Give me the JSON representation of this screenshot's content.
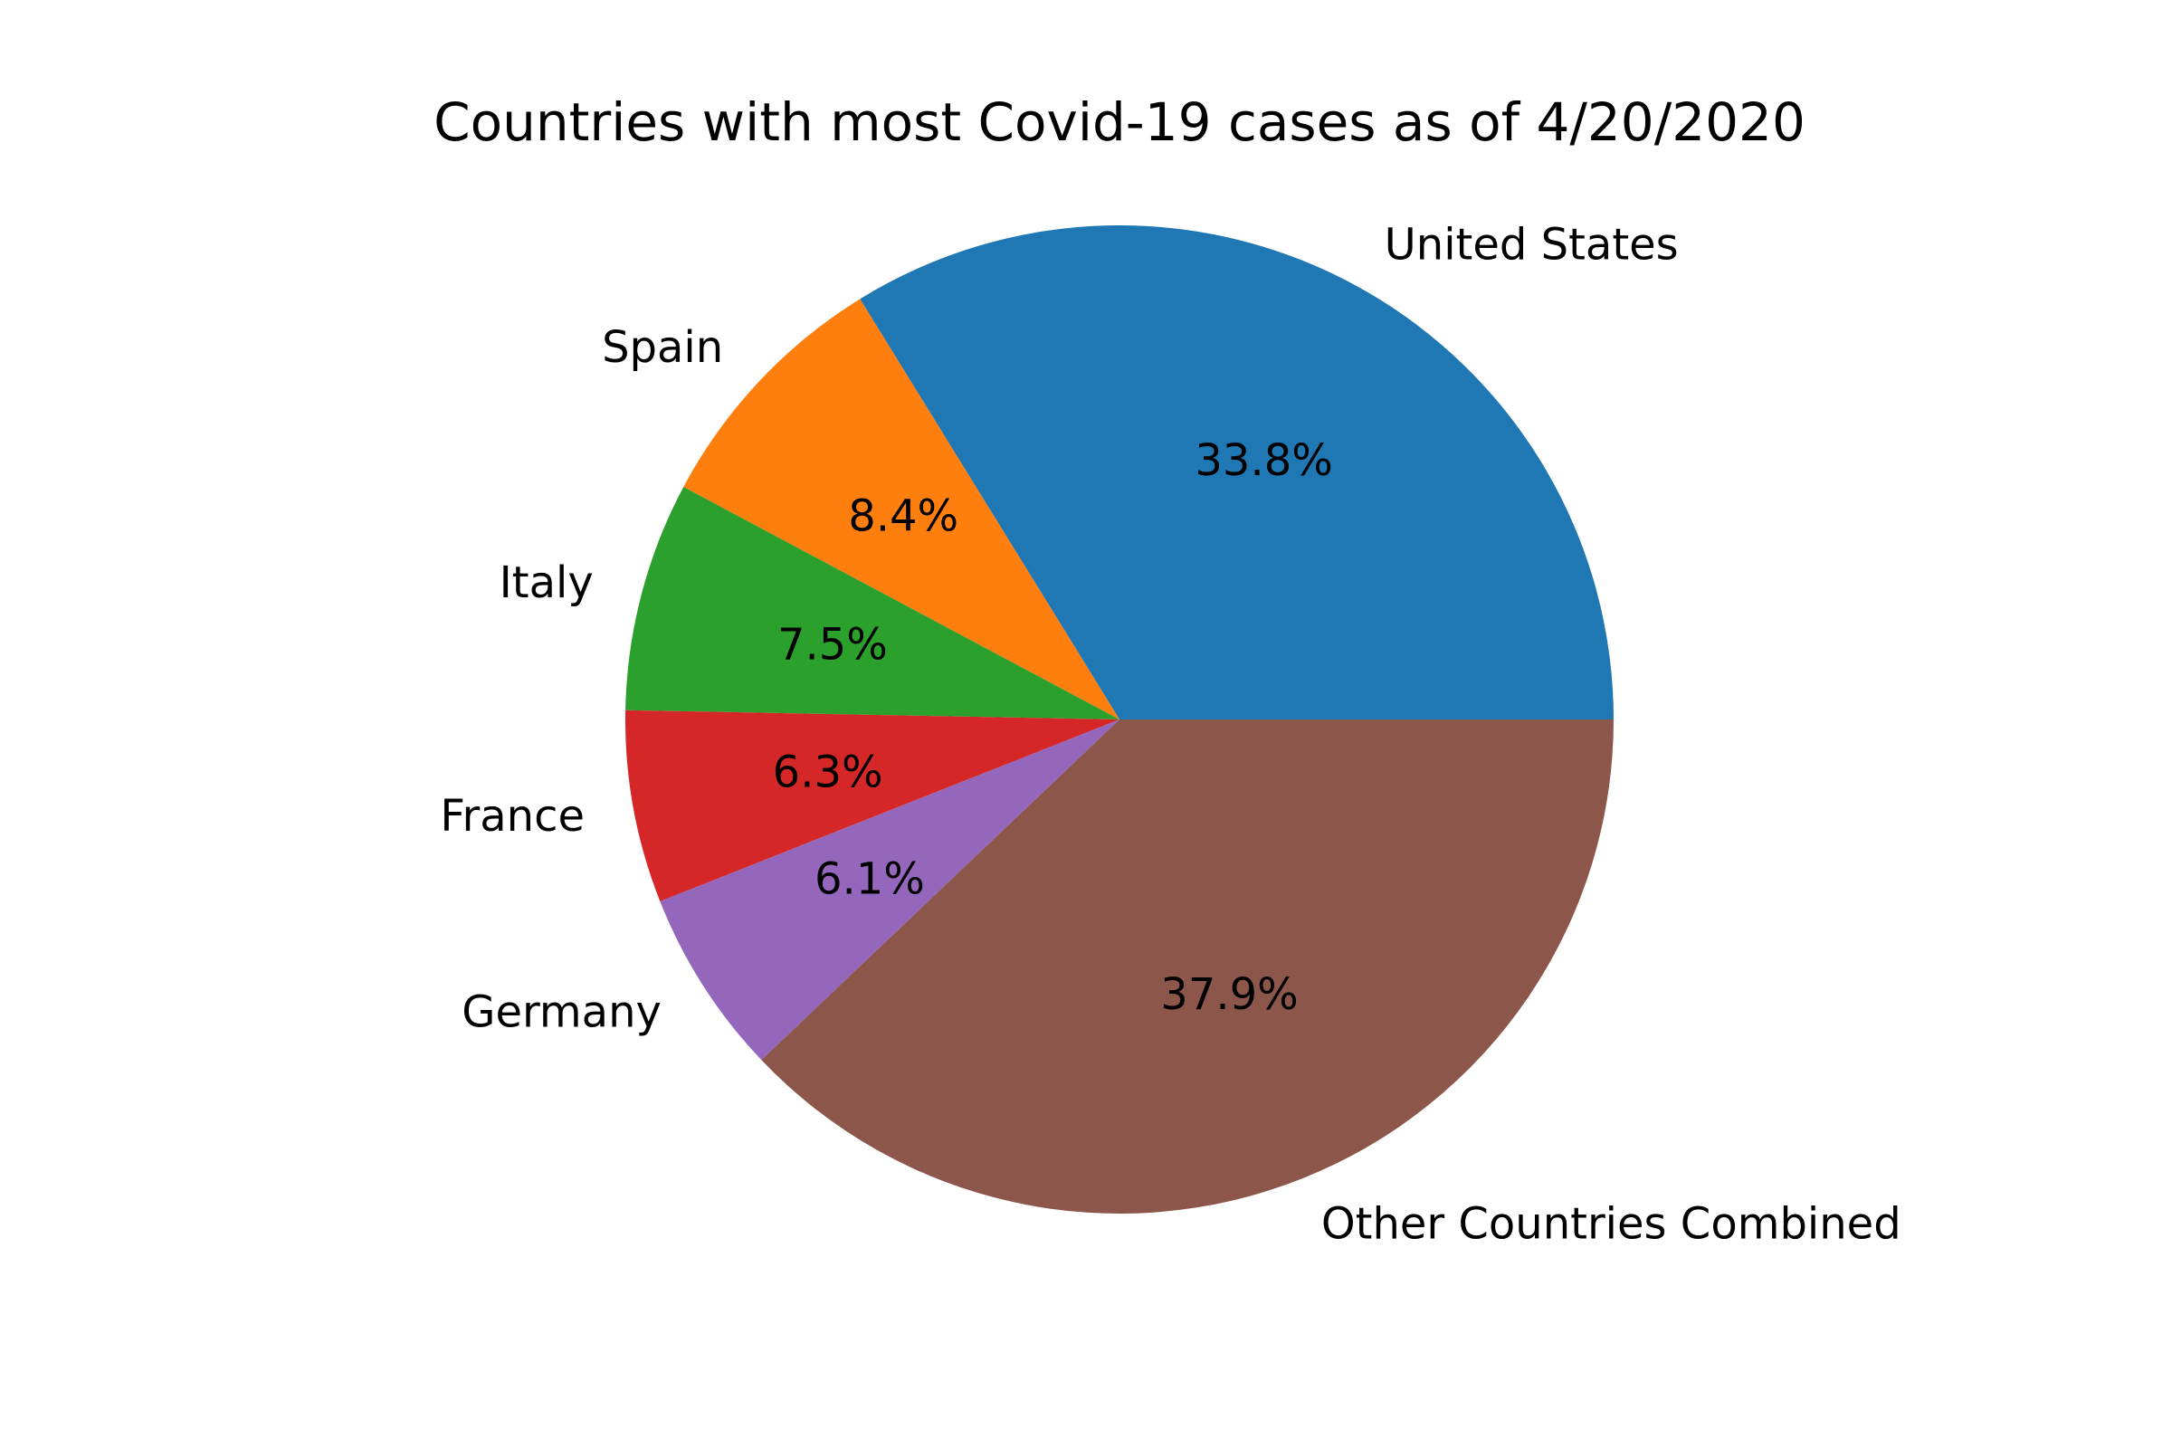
{
  "chart_data": {
    "type": "pie",
    "title": "Countries with most Covid-19 cases as of 4/20/2020",
    "start_angle_deg": 0,
    "direction": "counterclockwise",
    "slices": [
      {
        "label": "United States",
        "value": 33.8,
        "pct_label": "33.8%",
        "color": "#1f77b4"
      },
      {
        "label": "Spain",
        "value": 8.4,
        "pct_label": "8.4%",
        "color": "#ff7f0e"
      },
      {
        "label": "Italy",
        "value": 7.5,
        "pct_label": "7.5%",
        "color": "#2ca02c"
      },
      {
        "label": "France",
        "value": 6.3,
        "pct_label": "6.3%",
        "color": "#d62728"
      },
      {
        "label": "Germany",
        "value": 6.1,
        "pct_label": "6.1%",
        "color": "#9467bd"
      },
      {
        "label": "Other Countries Combined",
        "value": 37.9,
        "pct_label": "37.9%",
        "color": "#8c564b"
      }
    ]
  }
}
